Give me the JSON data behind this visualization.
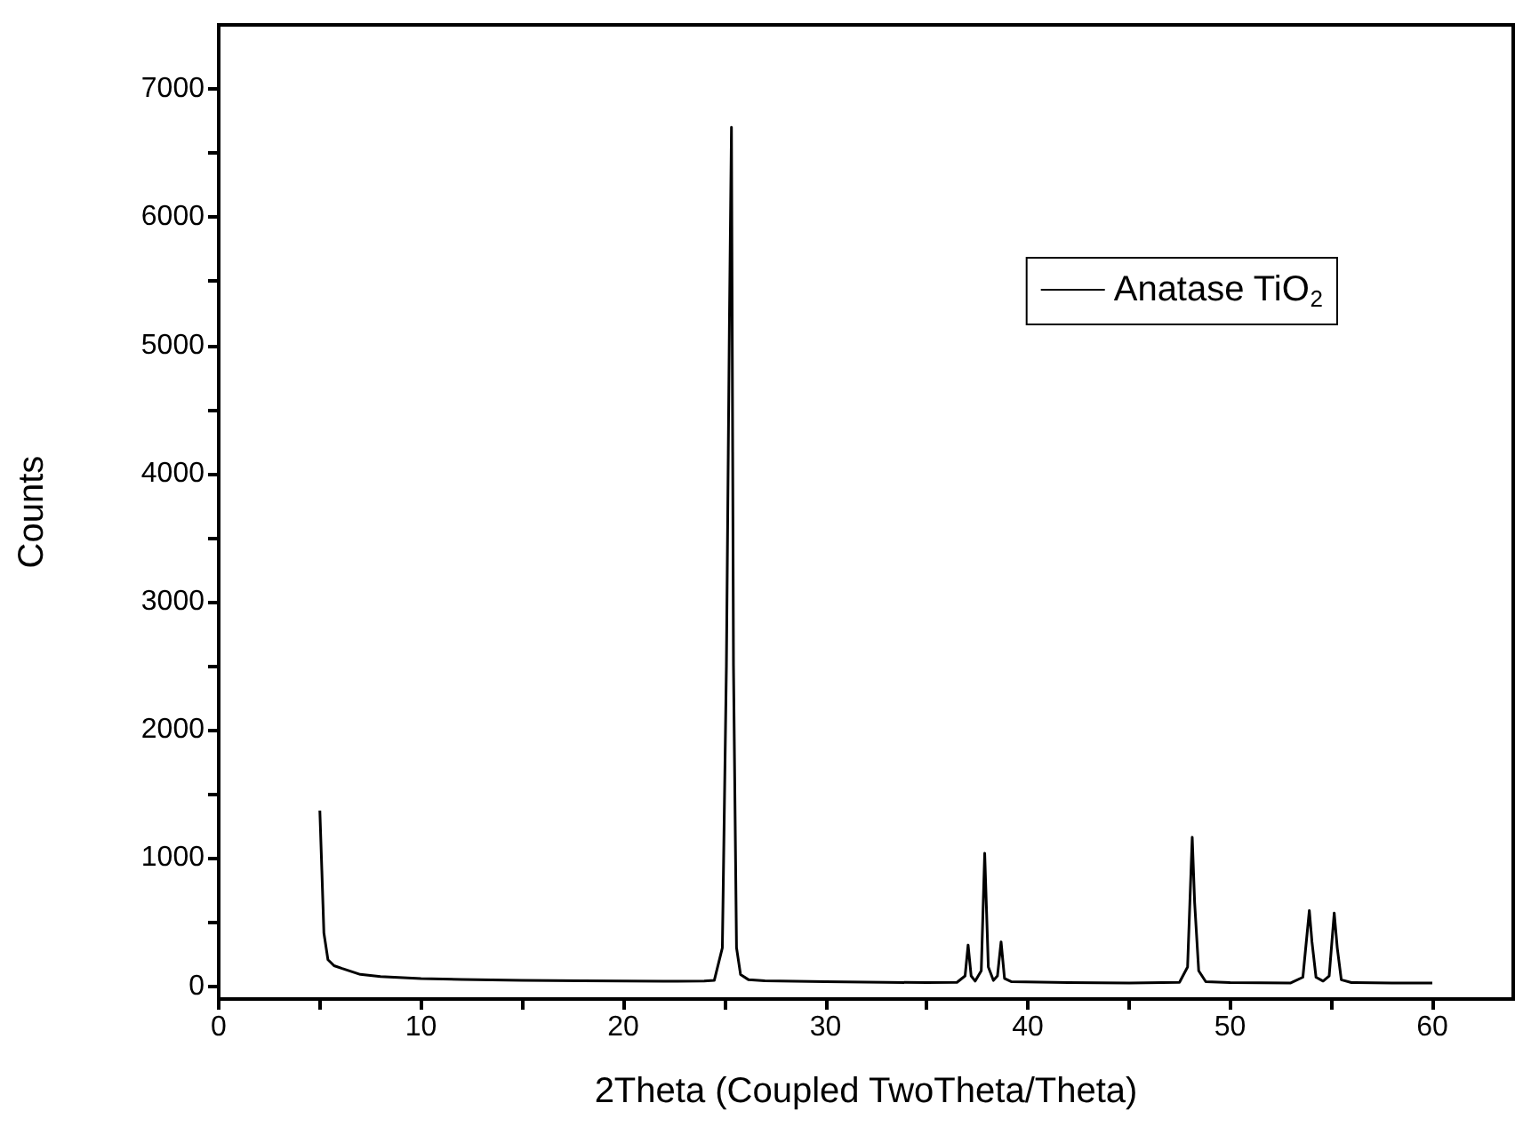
{
  "chart_data": {
    "type": "line",
    "xlabel": "2Theta (Coupled TwoTheta/Theta)",
    "ylabel": "Counts",
    "xlim": [
      0,
      64
    ],
    "xticks": [
      0,
      {
        "value": 5,
        "label": null
      },
      10,
      {
        "value": 15,
        "label": null
      },
      20,
      {
        "value": 25,
        "label": null
      },
      30,
      {
        "value": 35,
        "label": null
      },
      40,
      {
        "value": 45,
        "label": null
      },
      50,
      {
        "value": 55,
        "label": null
      },
      60
    ],
    "ylim": [
      -100,
      7500
    ],
    "yticks": [
      0,
      {
        "value": 500,
        "label": null
      },
      1000,
      {
        "value": 1500,
        "label": null
      },
      2000,
      {
        "value": 2500,
        "label": null
      },
      3000,
      {
        "value": 3500,
        "label": null
      },
      4000,
      {
        "value": 4500,
        "label": null
      },
      5000,
      {
        "value": 5500,
        "label": null
      },
      6000,
      {
        "value": 6500,
        "label": null
      },
      7000
    ],
    "grid": false,
    "legend": "top right",
    "marker": "none",
    "line_style": "solid",
    "series": [
      {
        "name": "Anatase TiO$_{2}$",
        "color": "#000000",
        "x": [
          5.0,
          5.1,
          5.2,
          5.4,
          5.7,
          6.1,
          7.0,
          8.0,
          10.0,
          12.0,
          15.0,
          18.0,
          20.0,
          22.0,
          24.0,
          24.5,
          24.9,
          25.1,
          25.25,
          25.35,
          25.45,
          25.6,
          25.8,
          26.2,
          27.0,
          30.0,
          33.0,
          35.0,
          36.5,
          36.9,
          37.05,
          37.2,
          37.4,
          37.7,
          37.87,
          38.05,
          38.3,
          38.5,
          38.68,
          38.85,
          39.2,
          42.0,
          45.0,
          47.5,
          47.9,
          48.13,
          48.25,
          48.45,
          48.8,
          50.0,
          53.0,
          53.6,
          53.92,
          54.05,
          54.25,
          54.6,
          54.9,
          55.15,
          55.3,
          55.5,
          56.0,
          58.0,
          60.0
        ],
        "values": [
          1370,
          900,
          415,
          207,
          160,
          138,
          92,
          75,
          60,
          52,
          45,
          42,
          40,
          38,
          40,
          45,
          300,
          2500,
          5200,
          6700,
          2500,
          300,
          90,
          50,
          42,
          35,
          30,
          28,
          30,
          80,
          322,
          80,
          40,
          120,
          1037,
          150,
          45,
          80,
          346,
          60,
          35,
          28,
          25,
          30,
          150,
          1162,
          650,
          120,
          35,
          28,
          25,
          70,
          590,
          346,
          70,
          40,
          80,
          571,
          300,
          50,
          28,
          25,
          25
        ]
      }
    ]
  }
}
